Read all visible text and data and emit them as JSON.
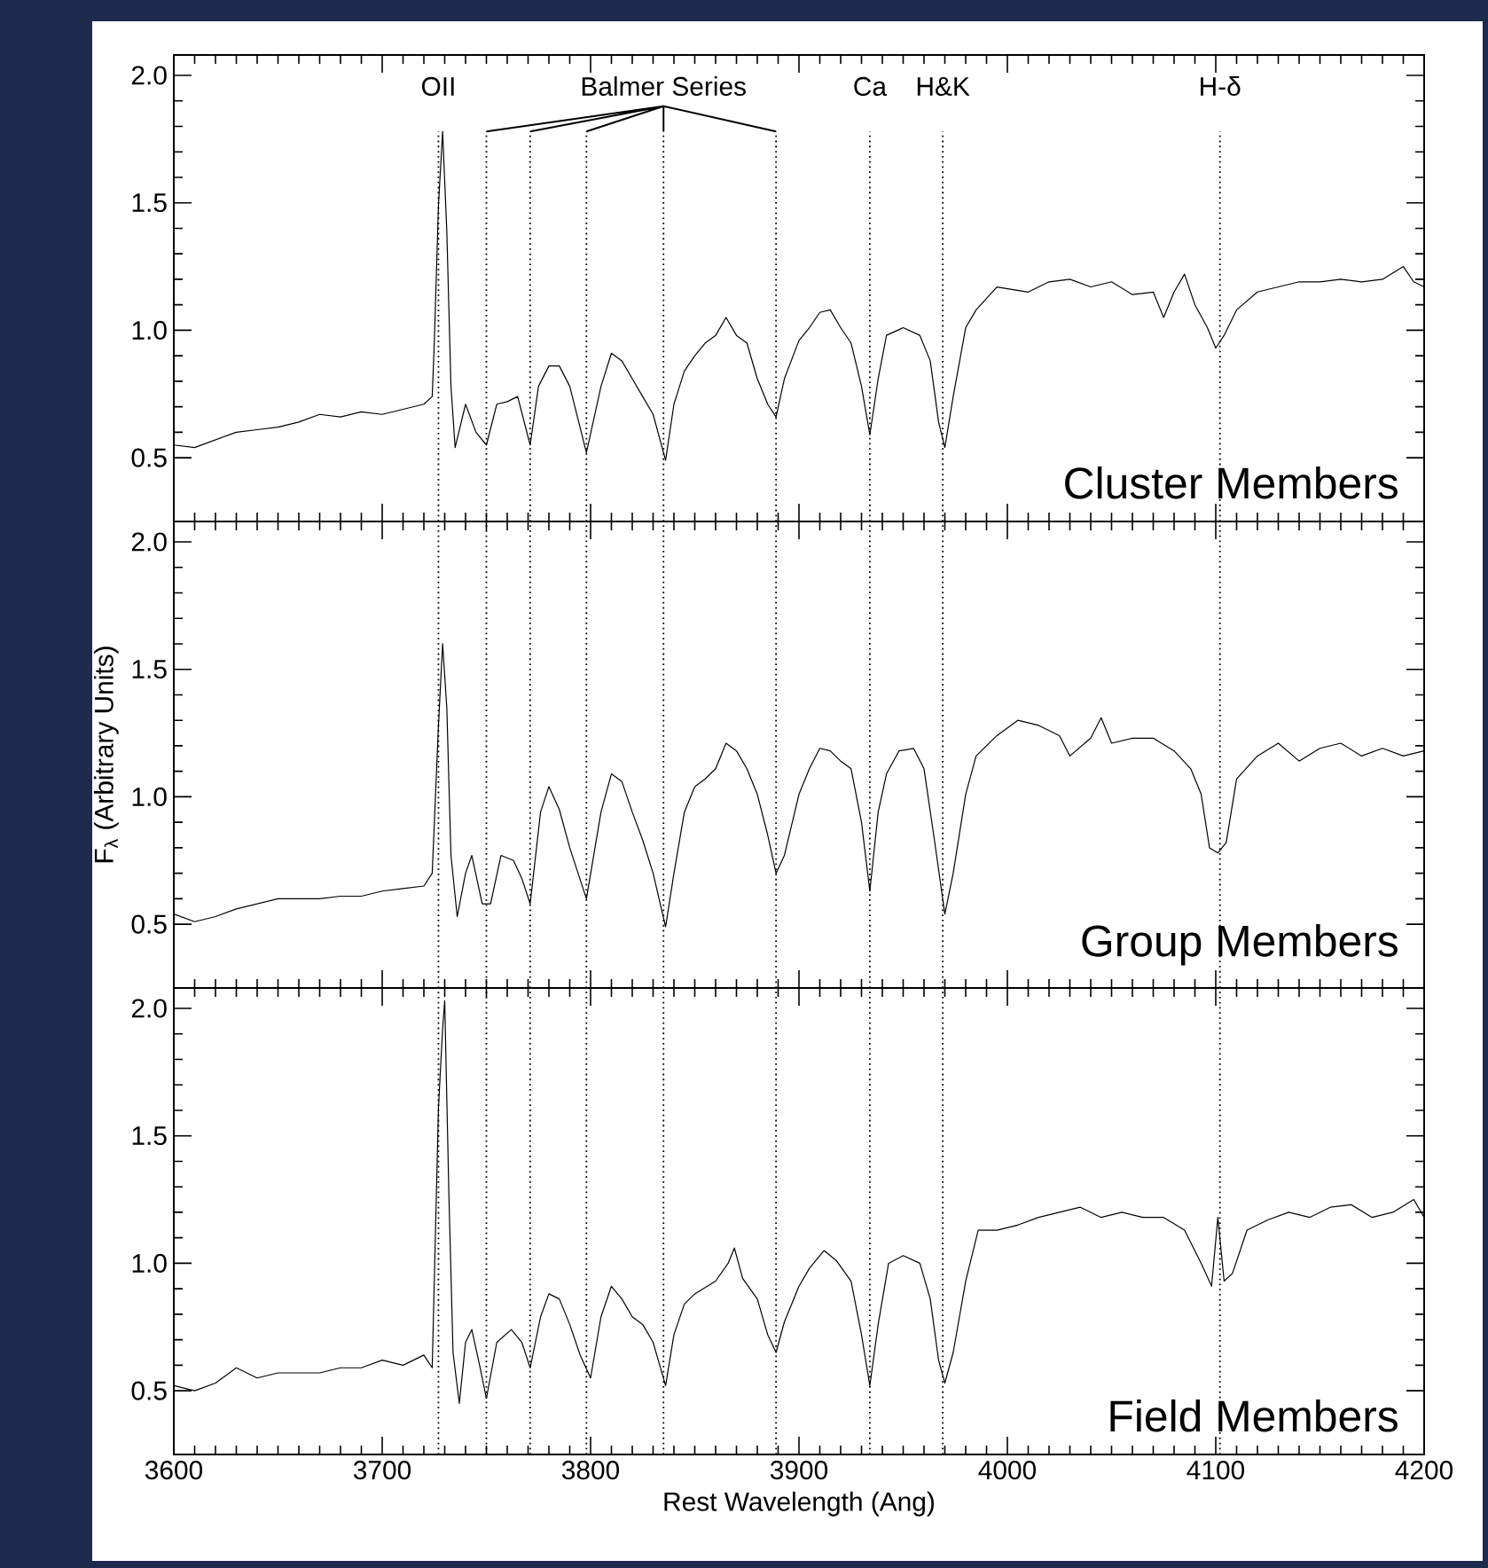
{
  "chart_data": [
    {
      "type": "line",
      "xlim": [
        3600,
        4200
      ],
      "xticks": [
        3600,
        3700,
        3800,
        3900,
        4000,
        4100,
        4200
      ],
      "ylim": [
        0.25,
        2.08
      ],
      "yticks": [
        {
          "value": 0.5,
          "label": "0.5"
        },
        {
          "value": 1.0,
          "label": "1.0"
        },
        {
          "value": 1.5,
          "label": "1.5"
        },
        {
          "value": 2.0,
          "label": "2.0"
        }
      ],
      "tick_labels": "y",
      "ref_lines": [
        {
          "axis": "x",
          "value": 3727,
          "label": "OII",
          "line_style": "dotted"
        },
        {
          "axis": "x",
          "value": 3750,
          "line_style": "dotted"
        },
        {
          "axis": "x",
          "value": 3771,
          "line_style": "dotted"
        },
        {
          "axis": "x",
          "value": 3798,
          "line_style": "dotted"
        },
        {
          "axis": "x",
          "value": 3835,
          "line_style": "dotted"
        },
        {
          "axis": "x",
          "value": 3889,
          "line_style": "dotted"
        },
        {
          "axis": "x",
          "value": 3934,
          "label": "Ca",
          "line_style": "dotted"
        },
        {
          "axis": "x",
          "value": 3969,
          "label": "H&K",
          "line_style": "dotted"
        },
        {
          "axis": "x",
          "value": 4102,
          "label": "H-δ",
          "line_style": "dotted"
        }
      ],
      "annotations": [
        {
          "text": "Balmer Series",
          "x": 3835,
          "y": 1.78
        }
      ],
      "series": [
        {
          "name": "Cluster Members",
          "color": "#000000",
          "x": [
            3600,
            3610,
            3620,
            3630,
            3640,
            3650,
            3660,
            3670,
            3680,
            3690,
            3700,
            3710,
            3720,
            3724,
            3725,
            3727,
            3729,
            3731,
            3733,
            3735,
            3740,
            3745,
            3750,
            3755,
            3760,
            3765,
            3771,
            3775,
            3780,
            3785,
            3790,
            3798,
            3805,
            3810,
            3815,
            3820,
            3825,
            3830,
            3836,
            3840,
            3845,
            3850,
            3855,
            3860,
            3865,
            3870,
            3875,
            3880,
            3885,
            3889,
            3893,
            3900,
            3905,
            3910,
            3915,
            3920,
            3925,
            3930,
            3934,
            3938,
            3942,
            3950,
            3958,
            3963,
            3967,
            3970,
            3974,
            3980,
            3985,
            3995,
            4010,
            4020,
            4030,
            4040,
            4050,
            4060,
            4070,
            4075,
            4080,
            4085,
            4090,
            4096,
            4100,
            4104,
            4110,
            4120,
            4130,
            4140,
            4150,
            4160,
            4170,
            4180,
            4190,
            4195,
            4200
          ],
          "values": [
            0.55,
            0.54,
            0.57,
            0.6,
            0.61,
            0.62,
            0.64,
            0.67,
            0.66,
            0.68,
            0.67,
            0.69,
            0.71,
            0.74,
            0.95,
            1.49,
            1.78,
            1.39,
            0.78,
            0.54,
            0.71,
            0.6,
            0.55,
            0.71,
            0.72,
            0.74,
            0.55,
            0.78,
            0.86,
            0.86,
            0.78,
            0.52,
            0.78,
            0.91,
            0.88,
            0.81,
            0.74,
            0.67,
            0.49,
            0.71,
            0.84,
            0.9,
            0.95,
            0.98,
            1.05,
            0.98,
            0.95,
            0.81,
            0.71,
            0.66,
            0.81,
            0.96,
            1.01,
            1.07,
            1.08,
            1.01,
            0.95,
            0.78,
            0.59,
            0.81,
            0.98,
            1.01,
            0.98,
            0.88,
            0.64,
            0.54,
            0.74,
            1.01,
            1.08,
            1.17,
            1.15,
            1.19,
            1.2,
            1.17,
            1.19,
            1.14,
            1.15,
            1.05,
            1.15,
            1.22,
            1.1,
            1.01,
            0.93,
            0.98,
            1.08,
            1.15,
            1.17,
            1.19,
            1.19,
            1.2,
            1.19,
            1.2,
            1.25,
            1.19,
            1.17
          ]
        }
      ]
    },
    {
      "type": "line",
      "xlim": [
        3600,
        4200
      ],
      "xticks": [
        3600,
        3700,
        3800,
        3900,
        4000,
        4100,
        4200
      ],
      "ylim": [
        0.25,
        2.08
      ],
      "yticks": [
        {
          "value": 0.5,
          "label": "0.5"
        },
        {
          "value": 1.0,
          "label": "1.0"
        },
        {
          "value": 1.5,
          "label": "1.5"
        },
        {
          "value": 2.0,
          "label": "2.0"
        }
      ],
      "tick_labels": "y",
      "ylabel": "F$_{λ}$ (Arbitrary Units)",
      "ref_lines": [
        {
          "axis": "x",
          "value": 3727,
          "line_style": "dotted"
        },
        {
          "axis": "x",
          "value": 3750,
          "line_style": "dotted"
        },
        {
          "axis": "x",
          "value": 3771,
          "line_style": "dotted"
        },
        {
          "axis": "x",
          "value": 3798,
          "line_style": "dotted"
        },
        {
          "axis": "x",
          "value": 3835,
          "line_style": "dotted"
        },
        {
          "axis": "x",
          "value": 3889,
          "line_style": "dotted"
        },
        {
          "axis": "x",
          "value": 3934,
          "line_style": "dotted"
        },
        {
          "axis": "x",
          "value": 3969,
          "line_style": "dotted"
        },
        {
          "axis": "x",
          "value": 4102,
          "line_style": "dotted"
        }
      ],
      "series": [
        {
          "name": "Group Members",
          "color": "#000000",
          "x": [
            3600,
            3610,
            3620,
            3630,
            3640,
            3650,
            3660,
            3670,
            3680,
            3690,
            3700,
            3710,
            3720,
            3724,
            3727,
            3729,
            3731,
            3733,
            3736,
            3740,
            3743,
            3748,
            3752,
            3757,
            3763,
            3767,
            3771,
            3776,
            3780,
            3785,
            3790,
            3798,
            3805,
            3810,
            3815,
            3820,
            3825,
            3830,
            3836,
            3840,
            3845,
            3850,
            3855,
            3860,
            3865,
            3870,
            3875,
            3880,
            3885,
            3889,
            3893,
            3900,
            3905,
            3910,
            3915,
            3920,
            3925,
            3930,
            3934,
            3938,
            3942,
            3948,
            3955,
            3960,
            3965,
            3970,
            3974,
            3980,
            3985,
            3995,
            4005,
            4015,
            4025,
            4030,
            4040,
            4045,
            4050,
            4060,
            4070,
            4080,
            4088,
            4093,
            4097,
            4101,
            4105,
            4110,
            4120,
            4130,
            4140,
            4150,
            4160,
            4170,
            4180,
            4190,
            4200
          ],
          "values": [
            0.54,
            0.51,
            0.53,
            0.56,
            0.58,
            0.6,
            0.6,
            0.6,
            0.61,
            0.61,
            0.63,
            0.64,
            0.65,
            0.7,
            1.28,
            1.6,
            1.35,
            0.77,
            0.53,
            0.7,
            0.77,
            0.58,
            0.58,
            0.77,
            0.75,
            0.68,
            0.58,
            0.94,
            1.04,
            0.95,
            0.8,
            0.6,
            0.94,
            1.09,
            1.06,
            0.94,
            0.83,
            0.7,
            0.49,
            0.7,
            0.94,
            1.04,
            1.07,
            1.11,
            1.21,
            1.18,
            1.11,
            1.01,
            0.85,
            0.7,
            0.77,
            1.01,
            1.11,
            1.19,
            1.18,
            1.14,
            1.11,
            0.9,
            0.63,
            0.94,
            1.09,
            1.18,
            1.19,
            1.11,
            0.83,
            0.54,
            0.7,
            1.01,
            1.16,
            1.24,
            1.3,
            1.28,
            1.24,
            1.16,
            1.23,
            1.31,
            1.21,
            1.23,
            1.23,
            1.18,
            1.11,
            1.01,
            0.8,
            0.78,
            0.82,
            1.07,
            1.16,
            1.21,
            1.14,
            1.19,
            1.21,
            1.16,
            1.19,
            1.16,
            1.18
          ]
        }
      ]
    },
    {
      "type": "line",
      "xlim": [
        3600,
        4200
      ],
      "xticks": [
        3600,
        3700,
        3800,
        3900,
        4000,
        4100,
        4200
      ],
      "ylim": [
        0.25,
        2.08
      ],
      "yticks": [
        {
          "value": 0.5,
          "label": "0.5"
        },
        {
          "value": 1.0,
          "label": "1.0"
        },
        {
          "value": 1.5,
          "label": "1.5"
        },
        {
          "value": 2.0,
          "label": "2.0"
        }
      ],
      "xlabel": "Rest Wavelength (Ang)",
      "ref_lines": [
        {
          "axis": "x",
          "value": 3727,
          "line_style": "dotted"
        },
        {
          "axis": "x",
          "value": 3750,
          "line_style": "dotted"
        },
        {
          "axis": "x",
          "value": 3771,
          "line_style": "dotted"
        },
        {
          "axis": "x",
          "value": 3798,
          "line_style": "dotted"
        },
        {
          "axis": "x",
          "value": 3835,
          "line_style": "dotted"
        },
        {
          "axis": "x",
          "value": 3889,
          "line_style": "dotted"
        },
        {
          "axis": "x",
          "value": 3934,
          "line_style": "dotted"
        },
        {
          "axis": "x",
          "value": 3969,
          "line_style": "dotted"
        },
        {
          "axis": "x",
          "value": 4102,
          "line_style": "dotted"
        }
      ],
      "series": [
        {
          "name": "Field Members",
          "color": "#000000",
          "x": [
            3600,
            3610,
            3620,
            3630,
            3640,
            3650,
            3660,
            3670,
            3680,
            3690,
            3700,
            3710,
            3720,
            3724,
            3727,
            3729,
            3730,
            3732,
            3734,
            3737,
            3740,
            3743,
            3747,
            3750,
            3755,
            3762,
            3767,
            3771,
            3776,
            3780,
            3785,
            3790,
            3795,
            3800,
            3805,
            3810,
            3815,
            3820,
            3825,
            3830,
            3836,
            3840,
            3845,
            3850,
            3860,
            3866,
            3869,
            3873,
            3880,
            3885,
            3889,
            3893,
            3900,
            3905,
            3912,
            3918,
            3925,
            3930,
            3934,
            3938,
            3943,
            3950,
            3958,
            3963,
            3967,
            3970,
            3974,
            3980,
            3986,
            3995,
            4005,
            4015,
            4025,
            4035,
            4045,
            4055,
            4065,
            4075,
            4085,
            4093,
            4098,
            4101,
            4104,
            4108,
            4115,
            4125,
            4135,
            4145,
            4155,
            4165,
            4175,
            4185,
            4195,
            4200
          ],
          "values": [
            0.52,
            0.5,
            0.53,
            0.59,
            0.55,
            0.57,
            0.57,
            0.57,
            0.59,
            0.59,
            0.62,
            0.6,
            0.64,
            0.59,
            1.61,
            1.92,
            2.03,
            1.27,
            0.65,
            0.45,
            0.69,
            0.74,
            0.59,
            0.47,
            0.69,
            0.74,
            0.69,
            0.59,
            0.79,
            0.88,
            0.86,
            0.76,
            0.64,
            0.55,
            0.79,
            0.91,
            0.86,
            0.79,
            0.76,
            0.69,
            0.52,
            0.72,
            0.84,
            0.88,
            0.93,
            1.0,
            1.06,
            0.94,
            0.86,
            0.72,
            0.65,
            0.77,
            0.91,
            0.98,
            1.05,
            1.01,
            0.93,
            0.72,
            0.52,
            0.76,
            1.0,
            1.03,
            1.0,
            0.86,
            0.62,
            0.53,
            0.65,
            0.93,
            1.13,
            1.13,
            1.15,
            1.18,
            1.2,
            1.22,
            1.18,
            1.2,
            1.18,
            1.18,
            1.13,
            1.0,
            0.91,
            1.18,
            0.93,
            0.96,
            1.13,
            1.17,
            1.2,
            1.18,
            1.22,
            1.23,
            1.18,
            1.2,
            1.25,
            1.18
          ]
        }
      ]
    }
  ]
}
